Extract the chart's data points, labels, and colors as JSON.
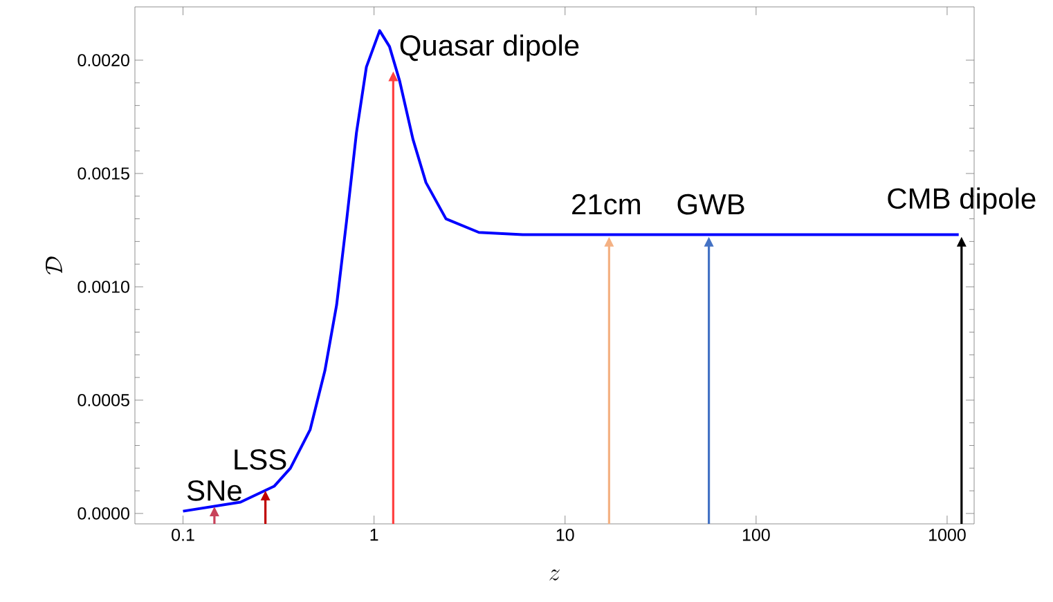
{
  "chart_data": {
    "type": "line",
    "xlabel": "z",
    "ylabel": "\\mathcal{D}",
    "log": "x",
    "xlim": [
      0.056,
      1385
    ],
    "ylim": [
      -4.6e-05,
      0.002235
    ],
    "xticks": [
      0.1,
      1,
      10,
      100,
      1000
    ],
    "yticks": [
      {
        "value": 0,
        "label": "0.0000"
      },
      {
        "value": 0.0005,
        "label": "0.0005"
      },
      {
        "value": 0.001,
        "label": "0.0010"
      },
      {
        "value": 0.0015,
        "label": "0.0015"
      },
      {
        "value": 0.002,
        "label": "0.0020"
      }
    ],
    "grid": false,
    "marker": "none",
    "line_style": "solid",
    "series": [
      {
        "color": "#0000ff",
        "x": [
          0.1,
          0.2,
          0.3,
          0.365,
          0.463,
          0.553,
          0.637,
          0.718,
          0.809,
          0.912,
          1.07,
          1.205,
          1.36,
          1.6,
          1.87,
          2.38,
          3.54,
          6,
          10,
          100,
          1150
        ],
        "values": [
          1e-05,
          5e-05,
          0.00012,
          0.0002,
          0.00037,
          0.00063,
          0.00092,
          0.00129,
          0.00168,
          0.00197,
          0.00213,
          0.00206,
          0.00191,
          0.00165,
          0.00146,
          0.0013,
          0.00124,
          0.00123,
          0.00123,
          0.00123,
          0.00123
        ]
      }
    ],
    "annotations": [
      {
        "text": "SNe",
        "x": 0.146,
        "y": 3e-05
      },
      {
        "text": "LSS",
        "x": 0.27,
        "y": 0.0001
      },
      {
        "text": "Quasar dipole",
        "x": 1.26,
        "y": 0.00195
      },
      {
        "text": "21cm",
        "x": 17,
        "y": 0.00122
      },
      {
        "text": "GWB",
        "x": 56.6,
        "y": 0.00122
      },
      {
        "text": "CMB dipole",
        "x": 1190,
        "y": 0.00122
      }
    ]
  }
}
